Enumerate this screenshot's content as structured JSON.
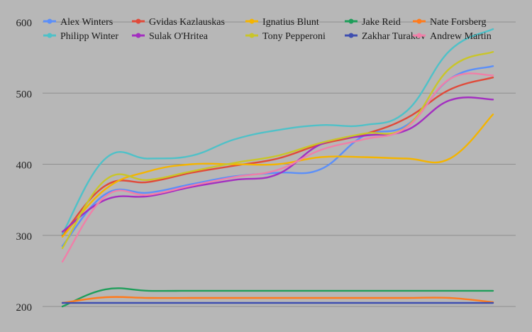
{
  "chart_data": {
    "type": "line",
    "title": "",
    "xlabel": "",
    "ylabel": "",
    "ylim": [
      200,
      600
    ],
    "yticks": [
      200,
      300,
      400,
      500,
      600
    ],
    "grid": true,
    "legend_position": "top",
    "background": "#b7b7b7",
    "gridline_color": "#8f8f8f",
    "x": [
      1,
      2,
      3,
      4,
      5,
      6,
      7,
      8,
      9,
      10,
      11
    ],
    "series": [
      {
        "name": "Alex Winters",
        "color": "#5b8ff9",
        "values": [
          285,
          358,
          360,
          372,
          383,
          388,
          393,
          440,
          455,
          520,
          538
        ]
      },
      {
        "name": "Gvidas Kazlauskas",
        "color": "#e04a3a",
        "values": [
          300,
          370,
          375,
          388,
          398,
          408,
          428,
          442,
          465,
          505,
          522
        ]
      },
      {
        "name": "Ignatius Blunt",
        "color": "#f4b400",
        "values": [
          298,
          365,
          390,
          400,
          400,
          400,
          410,
          410,
          408,
          408,
          470
        ]
      },
      {
        "name": "Jake Reid",
        "color": "#1e9e5a",
        "values": [
          200,
          224,
          222,
          222,
          222,
          222,
          222,
          222,
          222,
          222,
          222
        ]
      },
      {
        "name": "Nate Forsberg",
        "color": "#ff7b1c",
        "values": [
          205,
          213,
          212,
          212,
          212,
          212,
          212,
          212,
          212,
          212,
          206
        ]
      },
      {
        "name": "Philipp Winter",
        "color": "#4fc1c8",
        "values": [
          302,
          408,
          408,
          412,
          435,
          448,
          455,
          455,
          475,
          560,
          590
        ]
      },
      {
        "name": "Sulak O'Hritea",
        "color": "#a32fc0",
        "values": [
          305,
          350,
          355,
          368,
          378,
          386,
          428,
          440,
          448,
          490,
          491
        ]
      },
      {
        "name": "Tony Pepperoni",
        "color": "#c9c52a",
        "values": [
          282,
          378,
          378,
          390,
          402,
          412,
          430,
          443,
          453,
          535,
          558
        ]
      },
      {
        "name": "Zakhar Turakov",
        "color": "#3f4fb0",
        "values": [
          205,
          205,
          205,
          205,
          205,
          205,
          205,
          205,
          205,
          205,
          205
        ]
      },
      {
        "name": "Andrew Martin",
        "color": "#f07fa8",
        "values": [
          263,
          355,
          357,
          370,
          382,
          392,
          420,
          435,
          452,
          520,
          525
        ]
      }
    ]
  }
}
